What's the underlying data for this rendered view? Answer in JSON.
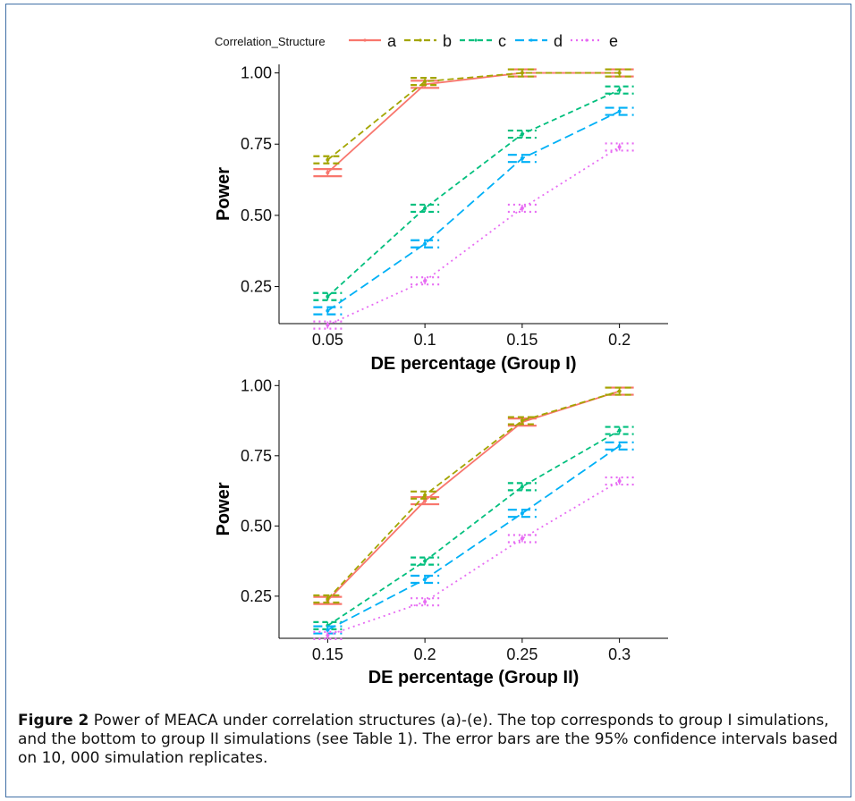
{
  "legend": {
    "title": "Correlation_Structure",
    "entries": [
      {
        "key": "a",
        "color": "#F8766D",
        "dash": ""
      },
      {
        "key": "b",
        "color": "#A3A500",
        "dash": "7,4"
      },
      {
        "key": "c",
        "color": "#00BF7D",
        "dash": "6,4"
      },
      {
        "key": "d",
        "color": "#00B0F6",
        "dash": "10,5"
      },
      {
        "key": "e",
        "color": "#E76BF3",
        "dash": "2,4"
      }
    ]
  },
  "chart_data": [
    {
      "type": "line",
      "xlabel": "DE percentage (Group I)",
      "ylabel": "Power",
      "categories": [
        "0.05",
        "0.1",
        "0.15",
        "0.2"
      ],
      "ylim": [
        0.12,
        1.03
      ],
      "yticks": [
        "0.25",
        "0.50",
        "0.75",
        "1.00"
      ],
      "grid": false,
      "series": [
        {
          "name": "a",
          "values": [
            0.65,
            0.96,
            1.0,
            1.0
          ]
        },
        {
          "name": "b",
          "values": [
            0.695,
            0.97,
            1.0,
            1.0
          ]
        },
        {
          "name": "c",
          "values": [
            0.215,
            0.525,
            0.785,
            0.94
          ]
        },
        {
          "name": "d",
          "values": [
            0.165,
            0.4,
            0.7,
            0.865
          ]
        },
        {
          "name": "e",
          "values": [
            0.115,
            0.27,
            0.525,
            0.74
          ]
        }
      ]
    },
    {
      "type": "line",
      "xlabel": "DE percentage (Group II)",
      "ylabel": "Power",
      "categories": [
        "0.15",
        "0.2",
        "0.25",
        "0.3"
      ],
      "ylim": [
        0.1,
        1.02
      ],
      "yticks": [
        "0.25",
        "0.50",
        "0.75",
        "1.00"
      ],
      "grid": false,
      "series": [
        {
          "name": "a",
          "values": [
            0.235,
            0.59,
            0.87,
            0.98
          ]
        },
        {
          "name": "b",
          "values": [
            0.24,
            0.61,
            0.875,
            0.98
          ]
        },
        {
          "name": "c",
          "values": [
            0.145,
            0.375,
            0.64,
            0.84
          ]
        },
        {
          "name": "d",
          "values": [
            0.13,
            0.31,
            0.545,
            0.785
          ]
        },
        {
          "name": "e",
          "values": [
            0.11,
            0.23,
            0.455,
            0.66
          ]
        }
      ]
    }
  ],
  "caption": {
    "label": "Figure 2",
    "text": "Power of MEACA under correlation structures (a)-(e). The top corresponds to group I simulations, and the bottom to group II simulations (see Table 1). The error bars are the 95% confidence intervals based on 10, 000 simulation replicates."
  }
}
